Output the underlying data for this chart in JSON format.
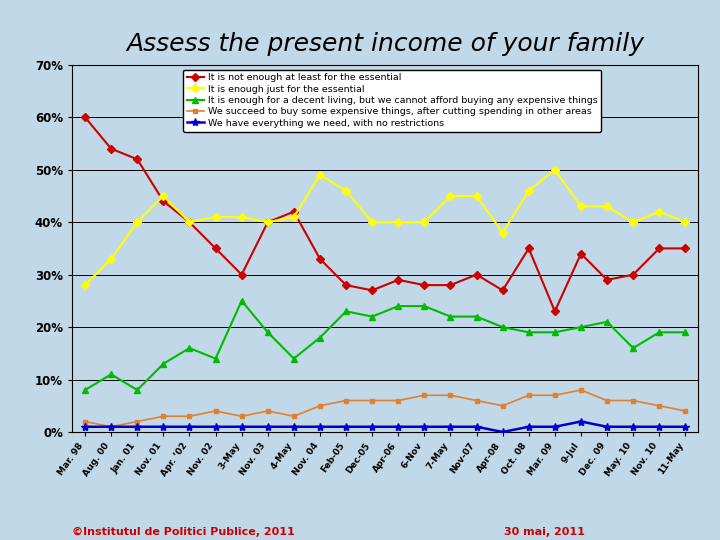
{
  "title": "Assess the present income of your family",
  "background_color": "#c0d8e8",
  "plot_bg_color": "#c0d8e8",
  "x_labels": [
    "Mar. 98",
    "Aug. 00",
    "Jan. 01",
    "Nov. 01",
    "Apr. ’02",
    "Nov. 02",
    "3-May",
    "Nov. 03",
    "4-May",
    "Nov. 04",
    "Feb-05",
    "Dec-05",
    "Apr-06",
    "6-Nov",
    "7-May",
    "Nov-07",
    "Apr-08",
    "Oct. 08",
    "Mar. 09",
    "9-Jul",
    "Dec. 09",
    "May. 10",
    "Nov. 10",
    "11-May"
  ],
  "series": [
    {
      "label": "It is not enough at least for the essential",
      "color": "#cc0000",
      "marker": "D",
      "markersize": 4,
      "linewidth": 1.5,
      "values": [
        60,
        54,
        52,
        44,
        40,
        35,
        30,
        40,
        42,
        33,
        28,
        27,
        29,
        28,
        28,
        30,
        27,
        35,
        23,
        34,
        29,
        30,
        35,
        35
      ]
    },
    {
      "label": "It is enough just for the essential",
      "color": "#ffff00",
      "marker": "D",
      "markersize": 4,
      "linewidth": 1.5,
      "values": [
        28,
        33,
        40,
        45,
        40,
        41,
        41,
        40,
        41,
        49,
        46,
        40,
        40,
        40,
        45,
        45,
        38,
        46,
        50,
        43,
        43,
        40,
        42,
        40
      ]
    },
    {
      "label": "It is enough for a decent living, but we cannot afford buying any expensive things",
      "color": "#00bb00",
      "marker": "^",
      "markersize": 5,
      "linewidth": 1.5,
      "values": [
        8,
        11,
        8,
        13,
        16,
        14,
        25,
        19,
        14,
        18,
        23,
        22,
        24,
        24,
        22,
        22,
        20,
        19,
        19,
        20,
        21,
        16,
        19,
        19
      ]
    },
    {
      "label": "We succeed to buy some expensive things, after cutting spending in other areas",
      "color": "#e08030",
      "marker": "s",
      "markersize": 3,
      "linewidth": 1.2,
      "values": [
        2,
        1,
        2,
        3,
        3,
        4,
        3,
        4,
        3,
        5,
        6,
        6,
        6,
        7,
        7,
        6,
        5,
        7,
        7,
        8,
        6,
        6,
        5,
        4
      ]
    },
    {
      "label": "We have everything we need, with no restrictions",
      "color": "#0000cc",
      "marker": "*",
      "markersize": 6,
      "linewidth": 1.8,
      "values": [
        1,
        1,
        1,
        1,
        1,
        1,
        1,
        1,
        1,
        1,
        1,
        1,
        1,
        1,
        1,
        1,
        0,
        1,
        1,
        2,
        1,
        1,
        1,
        1
      ]
    }
  ],
  "ylim": [
    0,
    70
  ],
  "yticks": [
    0,
    10,
    20,
    30,
    40,
    50,
    60,
    70
  ],
  "ytick_labels": [
    "0%",
    "10%",
    "20%",
    "30%",
    "40%",
    "50%",
    "60%",
    "70%"
  ],
  "footer_left": "©Institutul de Politici Publice, 2011",
  "footer_right": "30 mai, 2011",
  "legend_fontsize": 6.8,
  "title_fontsize": 18
}
